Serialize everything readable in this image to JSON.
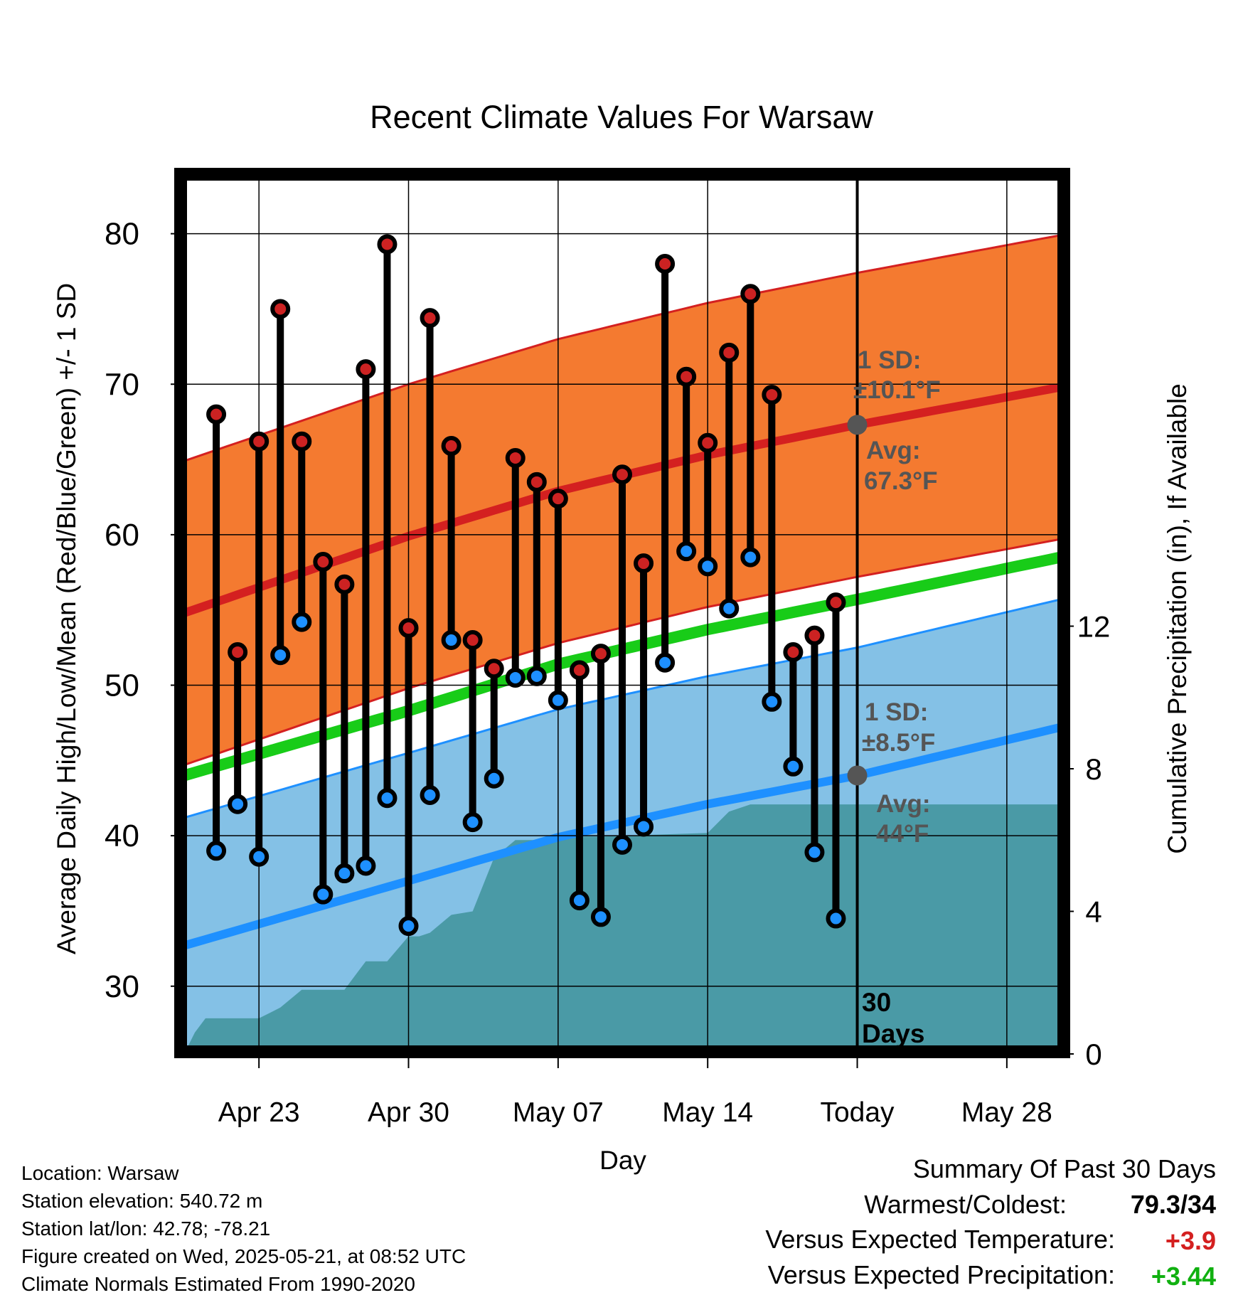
{
  "title": "Recent Climate Values For Warsaw",
  "y_axis_label": "Average Daily High/Low/Mean (Red/Blue/Green) +/- 1 SD",
  "y2_axis_label": "Cumulative Precipitation (in), If Available",
  "x_axis_label": "Day",
  "annotations": {
    "high_sd_line1": "1 SD:",
    "high_sd_line2": "±10.1°F",
    "high_avg_line1": "Avg:",
    "high_avg_line2": "67.3°F",
    "low_sd_line1": "1 SD:",
    "low_sd_line2": "±8.5°F",
    "low_avg_line1": "Avg:",
    "low_avg_line2": "44°F",
    "days_line1": "30",
    "days_line2": "Days"
  },
  "info": {
    "location": "Location: Warsaw",
    "elevation": "Station elevation: 540.72 m",
    "latlon": "Station lat/lon: 42.78; -78.21",
    "created": "Figure created on Wed, 2025-05-21, at 08:52 UTC",
    "normals": "Climate Normals Estimated From 1990-2020"
  },
  "summary": {
    "title": "Summary Of Past 30 Days",
    "warmest_coldest_label": "Warmest/Coldest:",
    "warmest_coldest_value": "79.3/34",
    "temp_label": "Versus Expected Temperature:",
    "temp_value": "+3.9",
    "precip_label": "Versus Expected Precipitation:",
    "precip_value": "+3.44",
    "temp_color": "#d42020",
    "precip_color": "#10b010"
  },
  "colors": {
    "high_band": "#f47a30",
    "high_avg": "#d42020",
    "low_band": "#84c1e6",
    "low_avg": "#1e90ff",
    "mean_avg": "#18cc18",
    "precip_fill": "#4a9aa6",
    "high_marker": "#cc2222",
    "low_marker": "#1e90ff",
    "annotation": "#555555"
  },
  "chart_data": {
    "type": "line",
    "x_ticks": [
      "Apr 23",
      "Apr 30",
      "May 07",
      "May 14",
      "Today",
      "May 28"
    ],
    "x_tick_days": [
      -28,
      -21,
      -14,
      -7,
      0,
      7
    ],
    "x_range_days": [
      -31.5,
      9.5
    ],
    "ylim": [
      25.5,
      84
    ],
    "y_ticks": [
      30,
      40,
      50,
      60,
      70,
      80
    ],
    "y2lim": [
      0,
      24.7
    ],
    "y2_ticks": [
      0,
      4,
      8,
      12
    ],
    "days": [
      -30,
      -29,
      -28,
      -27,
      -26,
      -25,
      -24,
      -23,
      -22,
      -21,
      -20,
      -19,
      -18,
      -17,
      -16,
      -15,
      -14,
      -13,
      -12,
      -11,
      -10,
      -9,
      -8,
      -7,
      -6,
      -5,
      -4,
      -3,
      -2,
      -1
    ],
    "daily_high": [
      68.0,
      52.2,
      66.2,
      75.0,
      66.2,
      58.2,
      56.7,
      71.0,
      79.3,
      53.8,
      74.4,
      65.9,
      53.0,
      51.1,
      65.1,
      63.5,
      62.4,
      51.0,
      52.1,
      64.0,
      58.1,
      78.0,
      70.5,
      66.1,
      72.1,
      76.0,
      69.3,
      52.2,
      53.3,
      55.5
    ],
    "daily_low": [
      39.0,
      42.1,
      38.6,
      52.0,
      54.2,
      36.1,
      37.5,
      38.0,
      42.5,
      34.0,
      42.7,
      53.0,
      40.9,
      43.8,
      50.5,
      50.6,
      49.0,
      35.7,
      34.6,
      39.4,
      40.6,
      51.5,
      58.9,
      57.9,
      55.1,
      58.5,
      48.9,
      44.6,
      38.9,
      34.5
    ],
    "normal_high_days": [
      -31.5,
      -21,
      -14,
      -7,
      0,
      9.5
    ],
    "normal_high": [
      54.8,
      59.9,
      62.9,
      65.3,
      67.3,
      69.8
    ],
    "high_sd": 10.1,
    "normal_low_days": [
      -31.5,
      -21,
      -14,
      -7,
      0,
      9.5
    ],
    "normal_low": [
      32.7,
      37.0,
      39.9,
      42.1,
      44.0,
      47.2
    ],
    "low_sd": 8.5,
    "normal_mean_days": [
      -31.5,
      -21,
      -14,
      -7,
      0,
      9.5
    ],
    "normal_mean": [
      44.0,
      48.3,
      51.4,
      53.7,
      55.7,
      58.5
    ],
    "today_high_avg": 67.3,
    "today_low_avg": 44.0,
    "precip_days": [
      -31.5,
      -31,
      -30.5,
      -28,
      -27,
      -26,
      -25,
      -24,
      -23,
      -22,
      -21,
      -20.5,
      -20,
      -19,
      -18,
      -17,
      -16,
      -15,
      -14,
      -13,
      -12,
      -7,
      -6,
      -5,
      -4,
      -3,
      9.5
    ],
    "precip_cumulative": [
      0.0,
      0.6,
      1.0,
      1.0,
      1.3,
      1.8,
      1.8,
      1.8,
      2.6,
      2.6,
      3.3,
      3.3,
      3.4,
      3.9,
      4.0,
      5.5,
      6.0,
      6.0,
      6.1,
      6.1,
      6.1,
      6.2,
      6.8,
      7.0,
      7.0,
      7.0,
      7.0
    ]
  }
}
